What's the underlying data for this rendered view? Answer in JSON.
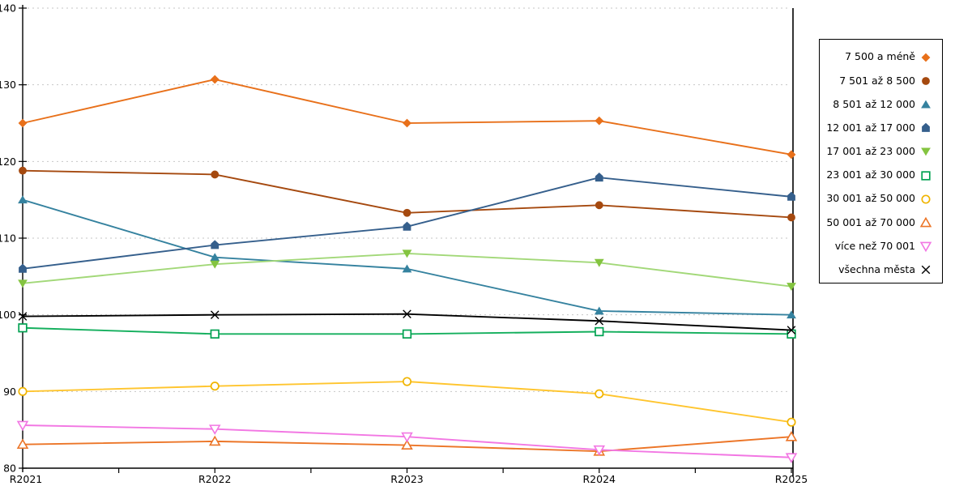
{
  "chart_data": {
    "type": "line",
    "title": "",
    "xlabel": "",
    "ylabel": "",
    "categories": [
      "R2021",
      "R2022",
      "R2023",
      "R2024",
      "R2025"
    ],
    "y_ticks": [
      80,
      90,
      100,
      110,
      120,
      130,
      140
    ],
    "ylim": [
      80,
      140
    ],
    "grid": "horizontal-dashed",
    "grid_color": "#C6C6C6",
    "axis_color": "#000000",
    "legend_position": "right",
    "series": [
      {
        "name": "7 500 a méně",
        "marker": "diamond",
        "color": "#E8701A",
        "line_color": "#E8701A",
        "values": [
          125.0,
          130.7,
          125.0,
          125.3,
          120.9
        ]
      },
      {
        "name": "7 501 až 8 500",
        "marker": "circle",
        "color": "#A5490F",
        "line_color": "#A5490F",
        "values": [
          118.8,
          118.3,
          113.3,
          114.3,
          112.7
        ]
      },
      {
        "name": "8 501 až 12 000",
        "marker": "triangle-up",
        "color": "#35829F",
        "line_color": "#35829F",
        "values": [
          115.0,
          107.5,
          106.0,
          100.5,
          100.0
        ]
      },
      {
        "name": "12 001 až 17 000",
        "marker": "pentagon",
        "color": "#355F8C",
        "line_color": "#355F8C",
        "values": [
          106.0,
          109.1,
          111.5,
          117.9,
          115.4
        ]
      },
      {
        "name": "17 001 až 23 000",
        "marker": "triangle-down",
        "color": "#84C440",
        "line_color": "#A2D878",
        "values": [
          104.1,
          106.6,
          108.0,
          106.8,
          103.7
        ]
      },
      {
        "name": "23 001 až 30 000",
        "marker": "square-open",
        "color": "#00A151",
        "line_color": "#14AF5D",
        "values": [
          98.3,
          97.5,
          97.5,
          97.8,
          97.5
        ]
      },
      {
        "name": "30 001 až 50 000",
        "marker": "circle-open",
        "color": "#F0B400",
        "line_color": "#FFC52E",
        "values": [
          90.0,
          90.7,
          91.3,
          89.7,
          86.0
        ]
      },
      {
        "name": "50 001 až 70 000",
        "marker": "triangle-up-open",
        "color": "#EC7527",
        "line_color": "#EC7527",
        "values": [
          83.1,
          83.5,
          83.0,
          82.2,
          84.1
        ]
      },
      {
        "name": "více než 70 001",
        "marker": "triangle-down-open",
        "color": "#F277E3",
        "line_color": "#F277E3",
        "values": [
          85.6,
          85.1,
          84.1,
          82.4,
          81.4
        ]
      },
      {
        "name": "všechna města",
        "marker": "x-cross",
        "color": "#000000",
        "line_color": "#000000",
        "values": [
          99.8,
          100.0,
          100.1,
          99.2,
          98.0
        ]
      }
    ]
  }
}
